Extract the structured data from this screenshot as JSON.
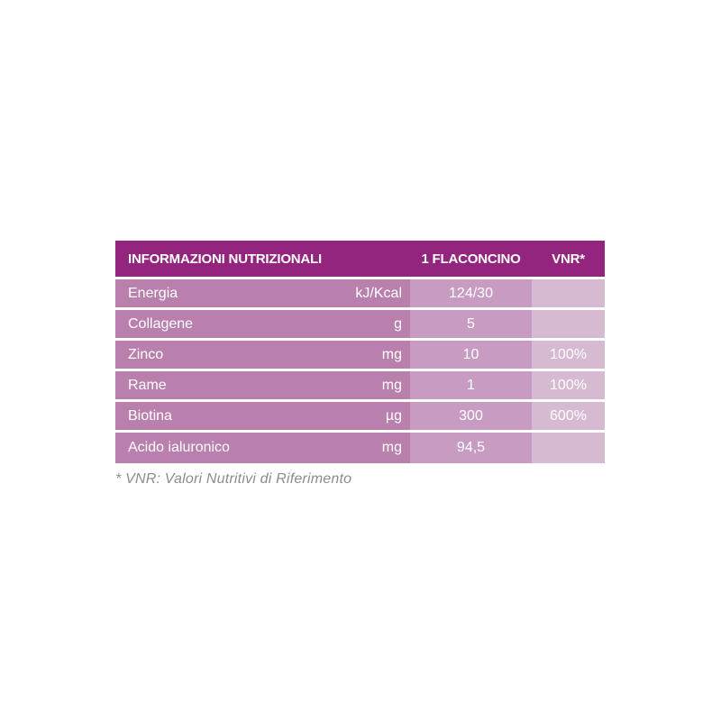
{
  "colors": {
    "header_bg": "#94257E",
    "name_cell_bg": "#B980AE",
    "value_cell_bg": "#C89CC2",
    "vnr_cell_bg": "#D6BAD2",
    "table_text": "#FFFFFF",
    "footnote_text": "#8C8C8E",
    "page_bg": "#FFFFFF"
  },
  "table": {
    "header": {
      "col1": "INFORMAZIONI NUTRIZIONALI",
      "col2": "1 FLACONCINO",
      "col3": "VNR*"
    },
    "rows": [
      {
        "name": "Energia",
        "unit": "kJ/Kcal",
        "value": "124/30",
        "vnr": ""
      },
      {
        "name": "Collagene",
        "unit": "g",
        "value": "5",
        "vnr": ""
      },
      {
        "name": "Zinco",
        "unit": "mg",
        "value": "10",
        "vnr": "100%"
      },
      {
        "name": "Rame",
        "unit": "mg",
        "value": "1",
        "vnr": "100%"
      },
      {
        "name": "Biotina",
        "unit": "µg",
        "value": "300",
        "vnr": "600%"
      },
      {
        "name": "Acido ialuronico",
        "unit": "mg",
        "value": "94,5",
        "vnr": ""
      }
    ],
    "footnote": "* VNR: Valori Nutritivi di Riferimento"
  }
}
